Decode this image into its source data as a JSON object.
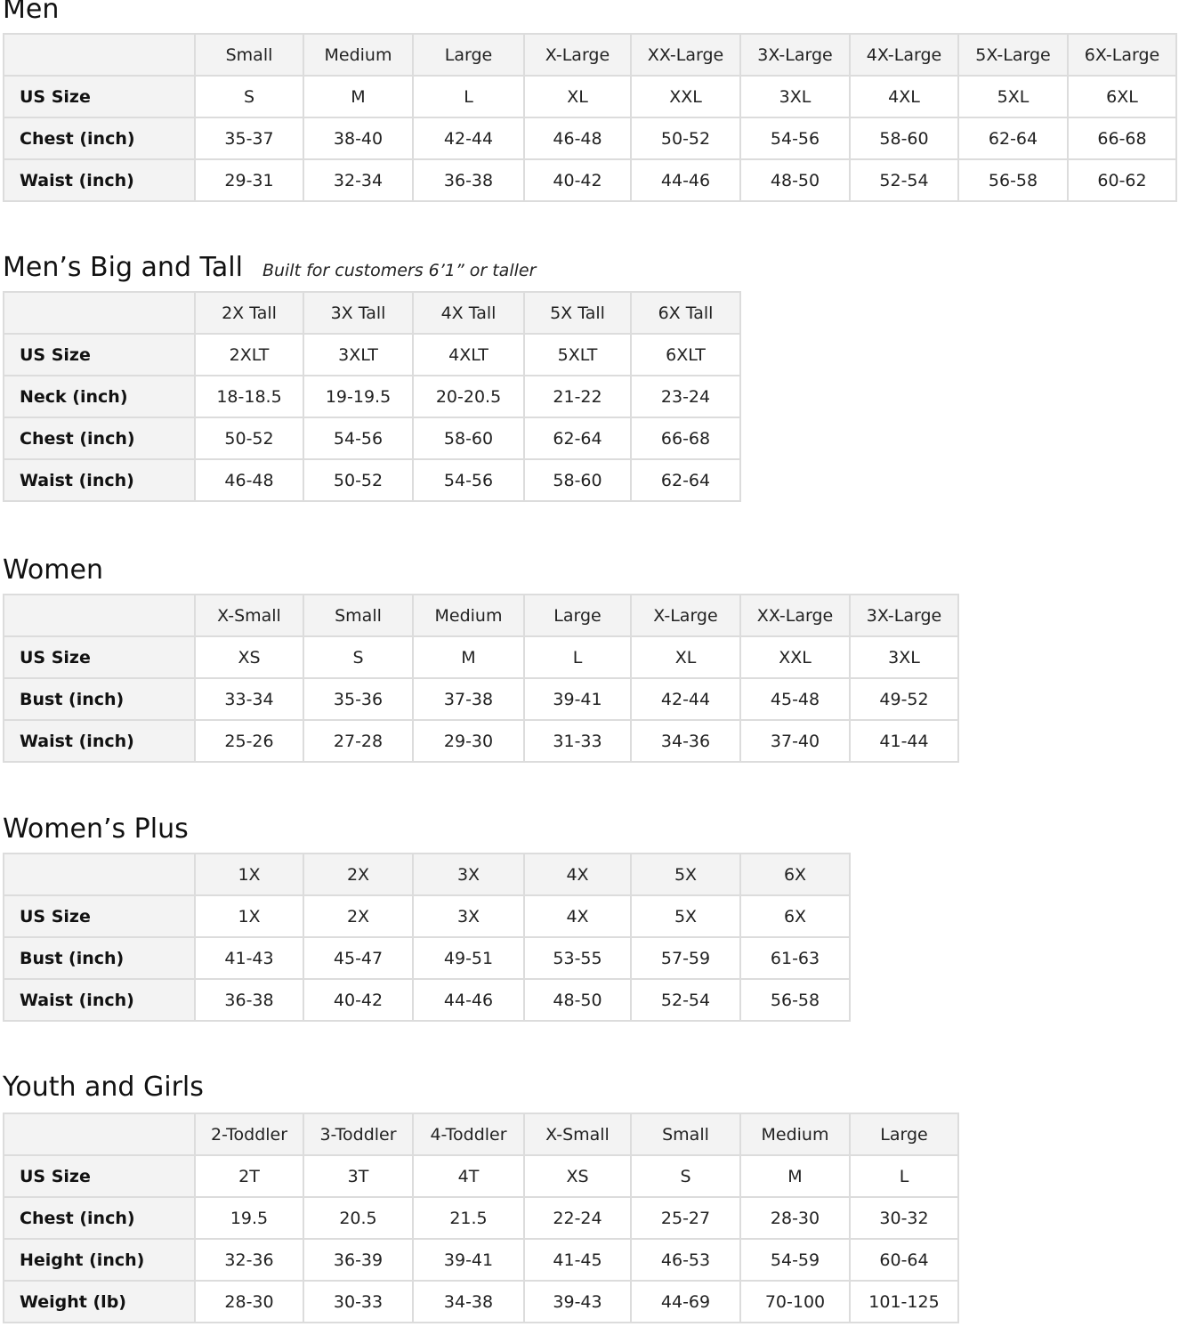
{
  "sections": [
    {
      "id": "men",
      "title": "Men",
      "subtitle": "",
      "columns": [
        "Small",
        "Medium",
        "Large",
        "X-Large",
        "XX-Large",
        "3X-Large",
        "4X-Large",
        "5X-Large",
        "6X-Large"
      ],
      "rows": [
        {
          "label": "US Size",
          "values": [
            "S",
            "M",
            "L",
            "XL",
            "XXL",
            "3XL",
            "4XL",
            "5XL",
            "6XL"
          ]
        },
        {
          "label": "Chest (inch)",
          "values": [
            "35-37",
            "38-40",
            "42-44",
            "46-48",
            "50-52",
            "54-56",
            "58-60",
            "62-64",
            "66-68"
          ]
        },
        {
          "label": "Waist (inch)",
          "values": [
            "29-31",
            "32-34",
            "36-38",
            "40-42",
            "44-46",
            "48-50",
            "52-54",
            "56-58",
            "60-62"
          ]
        }
      ]
    },
    {
      "id": "mens-big-and-tall",
      "title": "Men’s Big and Tall",
      "subtitle": "Built for customers 6’1” or taller",
      "columns": [
        "2X Tall",
        "3X Tall",
        "4X Tall",
        "5X Tall",
        "6X Tall"
      ],
      "rows": [
        {
          "label": "US Size",
          "values": [
            "2XLT",
            "3XLT",
            "4XLT",
            "5XLT",
            "6XLT"
          ]
        },
        {
          "label": "Neck (inch)",
          "values": [
            "18-18.5",
            "19-19.5",
            "20-20.5",
            "21-22",
            "23-24"
          ]
        },
        {
          "label": "Chest (inch)",
          "values": [
            "50-52",
            "54-56",
            "58-60",
            "62-64",
            "66-68"
          ]
        },
        {
          "label": "Waist (inch)",
          "values": [
            "46-48",
            "50-52",
            "54-56",
            "58-60",
            "62-64"
          ]
        }
      ]
    },
    {
      "id": "women",
      "title": "Women",
      "subtitle": "",
      "columns": [
        "X-Small",
        "Small",
        "Medium",
        "Large",
        "X-Large",
        "XX-Large",
        "3X-Large"
      ],
      "rows": [
        {
          "label": "US Size",
          "values": [
            "XS",
            "S",
            "M",
            "L",
            "XL",
            "XXL",
            "3XL"
          ]
        },
        {
          "label": "Bust (inch)",
          "values": [
            "33-34",
            "35-36",
            "37-38",
            "39-41",
            "42-44",
            "45-48",
            "49-52"
          ]
        },
        {
          "label": "Waist (inch)",
          "values": [
            "25-26",
            "27-28",
            "29-30",
            "31-33",
            "34-36",
            "37-40",
            "41-44"
          ]
        }
      ]
    },
    {
      "id": "womens-plus",
      "title": "Women’s  Plus",
      "subtitle": "",
      "columns": [
        "1X",
        "2X",
        "3X",
        "4X",
        "5X",
        "6X"
      ],
      "rows": [
        {
          "label": "US Size",
          "values": [
            "1X",
            "2X",
            "3X",
            "4X",
            "5X",
            "6X"
          ]
        },
        {
          "label": "Bust (inch)",
          "values": [
            "41-43",
            "45-47",
            "49-51",
            "53-55",
            "57-59",
            "61-63"
          ]
        },
        {
          "label": "Waist (inch)",
          "values": [
            "36-38",
            "40-42",
            "44-46",
            "48-50",
            "52-54",
            "56-58"
          ]
        }
      ]
    },
    {
      "id": "youth-and-girls",
      "title": "Youth and Girls",
      "subtitle": "",
      "columns": [
        "2-Toddler",
        "3-Toddler",
        "4-Toddler",
        "X-Small",
        "Small",
        "Medium",
        "Large"
      ],
      "rows": [
        {
          "label": "US Size",
          "values": [
            "2T",
            "3T",
            "4T",
            "XS",
            "S",
            "M",
            "L"
          ]
        },
        {
          "label": "Chest (inch)",
          "values": [
            "19.5",
            "20.5",
            "21.5",
            "22-24",
            "25-27",
            "28-30",
            "30-32"
          ]
        },
        {
          "label": "Height (inch)",
          "values": [
            "32-36",
            "36-39",
            "39-41",
            "41-45",
            "46-53",
            "54-59",
            "60-64"
          ]
        },
        {
          "label": "Weight (lb)",
          "values": [
            "28-30",
            "30-33",
            "34-38",
            "39-43",
            "44-69",
            "70-100",
            "101-125"
          ]
        }
      ]
    }
  ]
}
